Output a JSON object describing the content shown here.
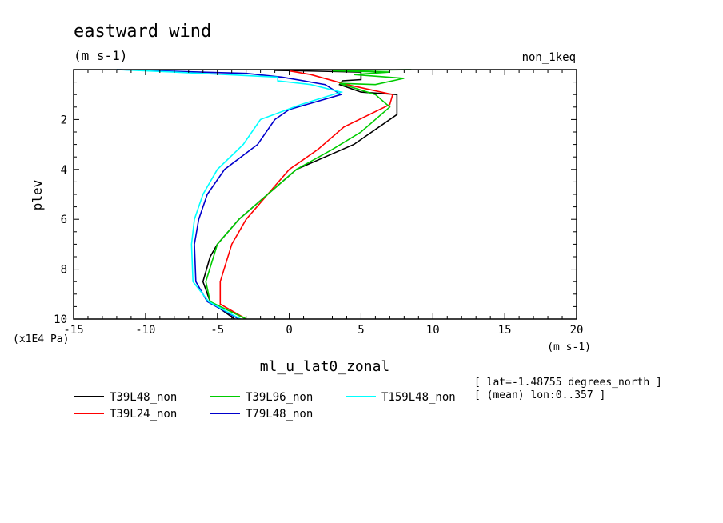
{
  "chart_data": {
    "type": "line",
    "title": "eastward wind",
    "units_label": "(m s-1)",
    "experiment": "non_1keq",
    "xlabel": "ml_u_lat0_zonal",
    "x_units": "(m s-1)",
    "ylabel": "plev",
    "y_units": "(x1E4 Pa)",
    "xlim": [
      -15,
      20
    ],
    "ylim": [
      10,
      0
    ],
    "x_ticks": [
      -15,
      -10,
      -5,
      0,
      5,
      10,
      15,
      20
    ],
    "x_tick_labels": [
      "-15",
      "-10",
      "-5",
      "0",
      "5",
      "10",
      "15",
      "20"
    ],
    "y_ticks": [
      2,
      4,
      6,
      8,
      10
    ],
    "y_tick_labels": [
      "2",
      "4",
      "6",
      "8",
      "10"
    ],
    "info_lines": [
      "[ lat=-1.48755 degrees_north ]",
      "[ (mean) lon:0..357 ]"
    ],
    "series": [
      {
        "name": "T39L48_non",
        "color": "#000000",
        "points": [
          [
            -3.8,
            10
          ],
          [
            -5.5,
            9.3
          ],
          [
            -6,
            8.5
          ],
          [
            -5.5,
            7.5
          ],
          [
            -5,
            7
          ],
          [
            -3.5,
            6
          ],
          [
            -1.5,
            5
          ],
          [
            0.5,
            4
          ],
          [
            2.5,
            3.5
          ],
          [
            4.5,
            3
          ],
          [
            7.5,
            1.8
          ],
          [
            7.5,
            1
          ],
          [
            5,
            0.9
          ],
          [
            3.5,
            0.6
          ],
          [
            3.7,
            0.45
          ],
          [
            5,
            0.4
          ],
          [
            5,
            0.1
          ],
          [
            1,
            0.05
          ],
          [
            -1,
            0.03
          ]
        ]
      },
      {
        "name": "T39L24_non",
        "color": "#ff0000",
        "points": [
          [
            -3,
            10
          ],
          [
            -4.8,
            9.4
          ],
          [
            -4.8,
            8.5
          ],
          [
            -4,
            7
          ],
          [
            -3,
            6
          ],
          [
            -1.5,
            5
          ],
          [
            0,
            4
          ],
          [
            2,
            3.2
          ],
          [
            3.8,
            2.3
          ],
          [
            7,
            1.4
          ],
          [
            7.2,
            1
          ],
          [
            4,
            0.6
          ],
          [
            1.5,
            0.2
          ],
          [
            0,
            0.05
          ]
        ]
      },
      {
        "name": "T39L96_non",
        "color": "#00cc00",
        "points": [
          [
            -3,
            10
          ],
          [
            -5.5,
            9.3
          ],
          [
            -5.8,
            8.5
          ],
          [
            -5,
            7
          ],
          [
            -3.5,
            6
          ],
          [
            -1.5,
            5
          ],
          [
            0.5,
            4
          ],
          [
            3,
            3.2
          ],
          [
            5,
            2.5
          ],
          [
            7,
            1.5
          ],
          [
            6,
            1
          ],
          [
            3.5,
            0.55
          ],
          [
            6,
            0.6
          ],
          [
            8,
            0.35
          ],
          [
            4.5,
            0.2
          ],
          [
            7,
            0.1
          ],
          [
            3,
            0.05
          ],
          [
            8.5,
            0
          ]
        ]
      },
      {
        "name": "T79L48_non",
        "color": "#0000cc",
        "points": [
          [
            -3.5,
            10
          ],
          [
            -5.7,
            9.3
          ],
          [
            -6.5,
            8.5
          ],
          [
            -6.6,
            7
          ],
          [
            -6.3,
            6
          ],
          [
            -5.7,
            5
          ],
          [
            -4.5,
            4
          ],
          [
            -2.2,
            3
          ],
          [
            -1,
            2
          ],
          [
            0,
            1.6
          ],
          [
            3.6,
            1
          ],
          [
            2.5,
            0.6
          ],
          [
            -0.5,
            0.3
          ],
          [
            -3,
            0.15
          ],
          [
            -12,
            0
          ]
        ]
      },
      {
        "name": "T159L48_non",
        "color": "#00ffff",
        "points": [
          [
            -3.4,
            10
          ],
          [
            -5.6,
            9.3
          ],
          [
            -6.7,
            8.5
          ],
          [
            -6.8,
            7
          ],
          [
            -6.6,
            6
          ],
          [
            -6,
            5
          ],
          [
            -5,
            4
          ],
          [
            -3.2,
            3
          ],
          [
            -2,
            2
          ],
          [
            0.8,
            1.4
          ],
          [
            3.6,
            0.9
          ],
          [
            1.5,
            0.6
          ],
          [
            -0.8,
            0.45
          ],
          [
            -0.8,
            0.3
          ],
          [
            -8,
            0.1
          ],
          [
            -12,
            0
          ]
        ]
      }
    ]
  }
}
